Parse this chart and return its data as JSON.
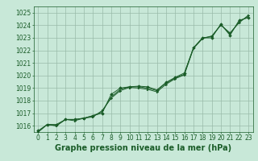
{
  "x": [
    0,
    1,
    2,
    3,
    4,
    5,
    6,
    7,
    8,
    9,
    10,
    11,
    12,
    13,
    14,
    15,
    16,
    17,
    18,
    19,
    20,
    21,
    22,
    23
  ],
  "line1": [
    1015.6,
    1016.1,
    1016.1,
    1016.5,
    1016.5,
    1016.6,
    1016.8,
    1017.0,
    1018.5,
    1019.0,
    1019.1,
    1019.15,
    1019.1,
    1018.85,
    1019.45,
    1019.85,
    1020.2,
    1022.2,
    1023.0,
    1023.0,
    1024.1,
    1023.2,
    1024.4,
    1024.6
  ],
  "line2": [
    1015.5,
    1016.1,
    1016.0,
    1016.5,
    1016.5,
    1016.6,
    1016.8,
    1017.1,
    1018.3,
    1018.9,
    1019.1,
    1019.1,
    1019.0,
    1018.8,
    1019.4,
    1019.8,
    1020.1,
    1022.2,
    1023.0,
    1023.1,
    1024.05,
    1023.3,
    1024.3,
    1024.7
  ],
  "line3": [
    1015.5,
    1016.1,
    1016.0,
    1016.5,
    1016.4,
    1016.6,
    1016.7,
    1017.2,
    1018.2,
    1018.8,
    1019.05,
    1019.0,
    1018.9,
    1018.7,
    1019.3,
    1019.75,
    1020.05,
    1022.15,
    1022.95,
    1023.15,
    1024.0,
    1023.4,
    1024.2,
    1024.8
  ],
  "bg_color": "#c8e8d8",
  "grid_color": "#99bbaa",
  "line_color": "#1a5c28",
  "marker_color": "#1a5c28",
  "xlabel": "Graphe pression niveau de la mer (hPa)",
  "ylim_min": 1015.5,
  "ylim_max": 1025.5,
  "yticks": [
    1016,
    1017,
    1018,
    1019,
    1020,
    1021,
    1022,
    1023,
    1024,
    1025
  ],
  "xticks": [
    0,
    1,
    2,
    3,
    4,
    5,
    6,
    7,
    8,
    9,
    10,
    11,
    12,
    13,
    14,
    15,
    16,
    17,
    18,
    19,
    20,
    21,
    22,
    23
  ],
  "tick_font_size": 5.5,
  "label_font_size": 7.0
}
